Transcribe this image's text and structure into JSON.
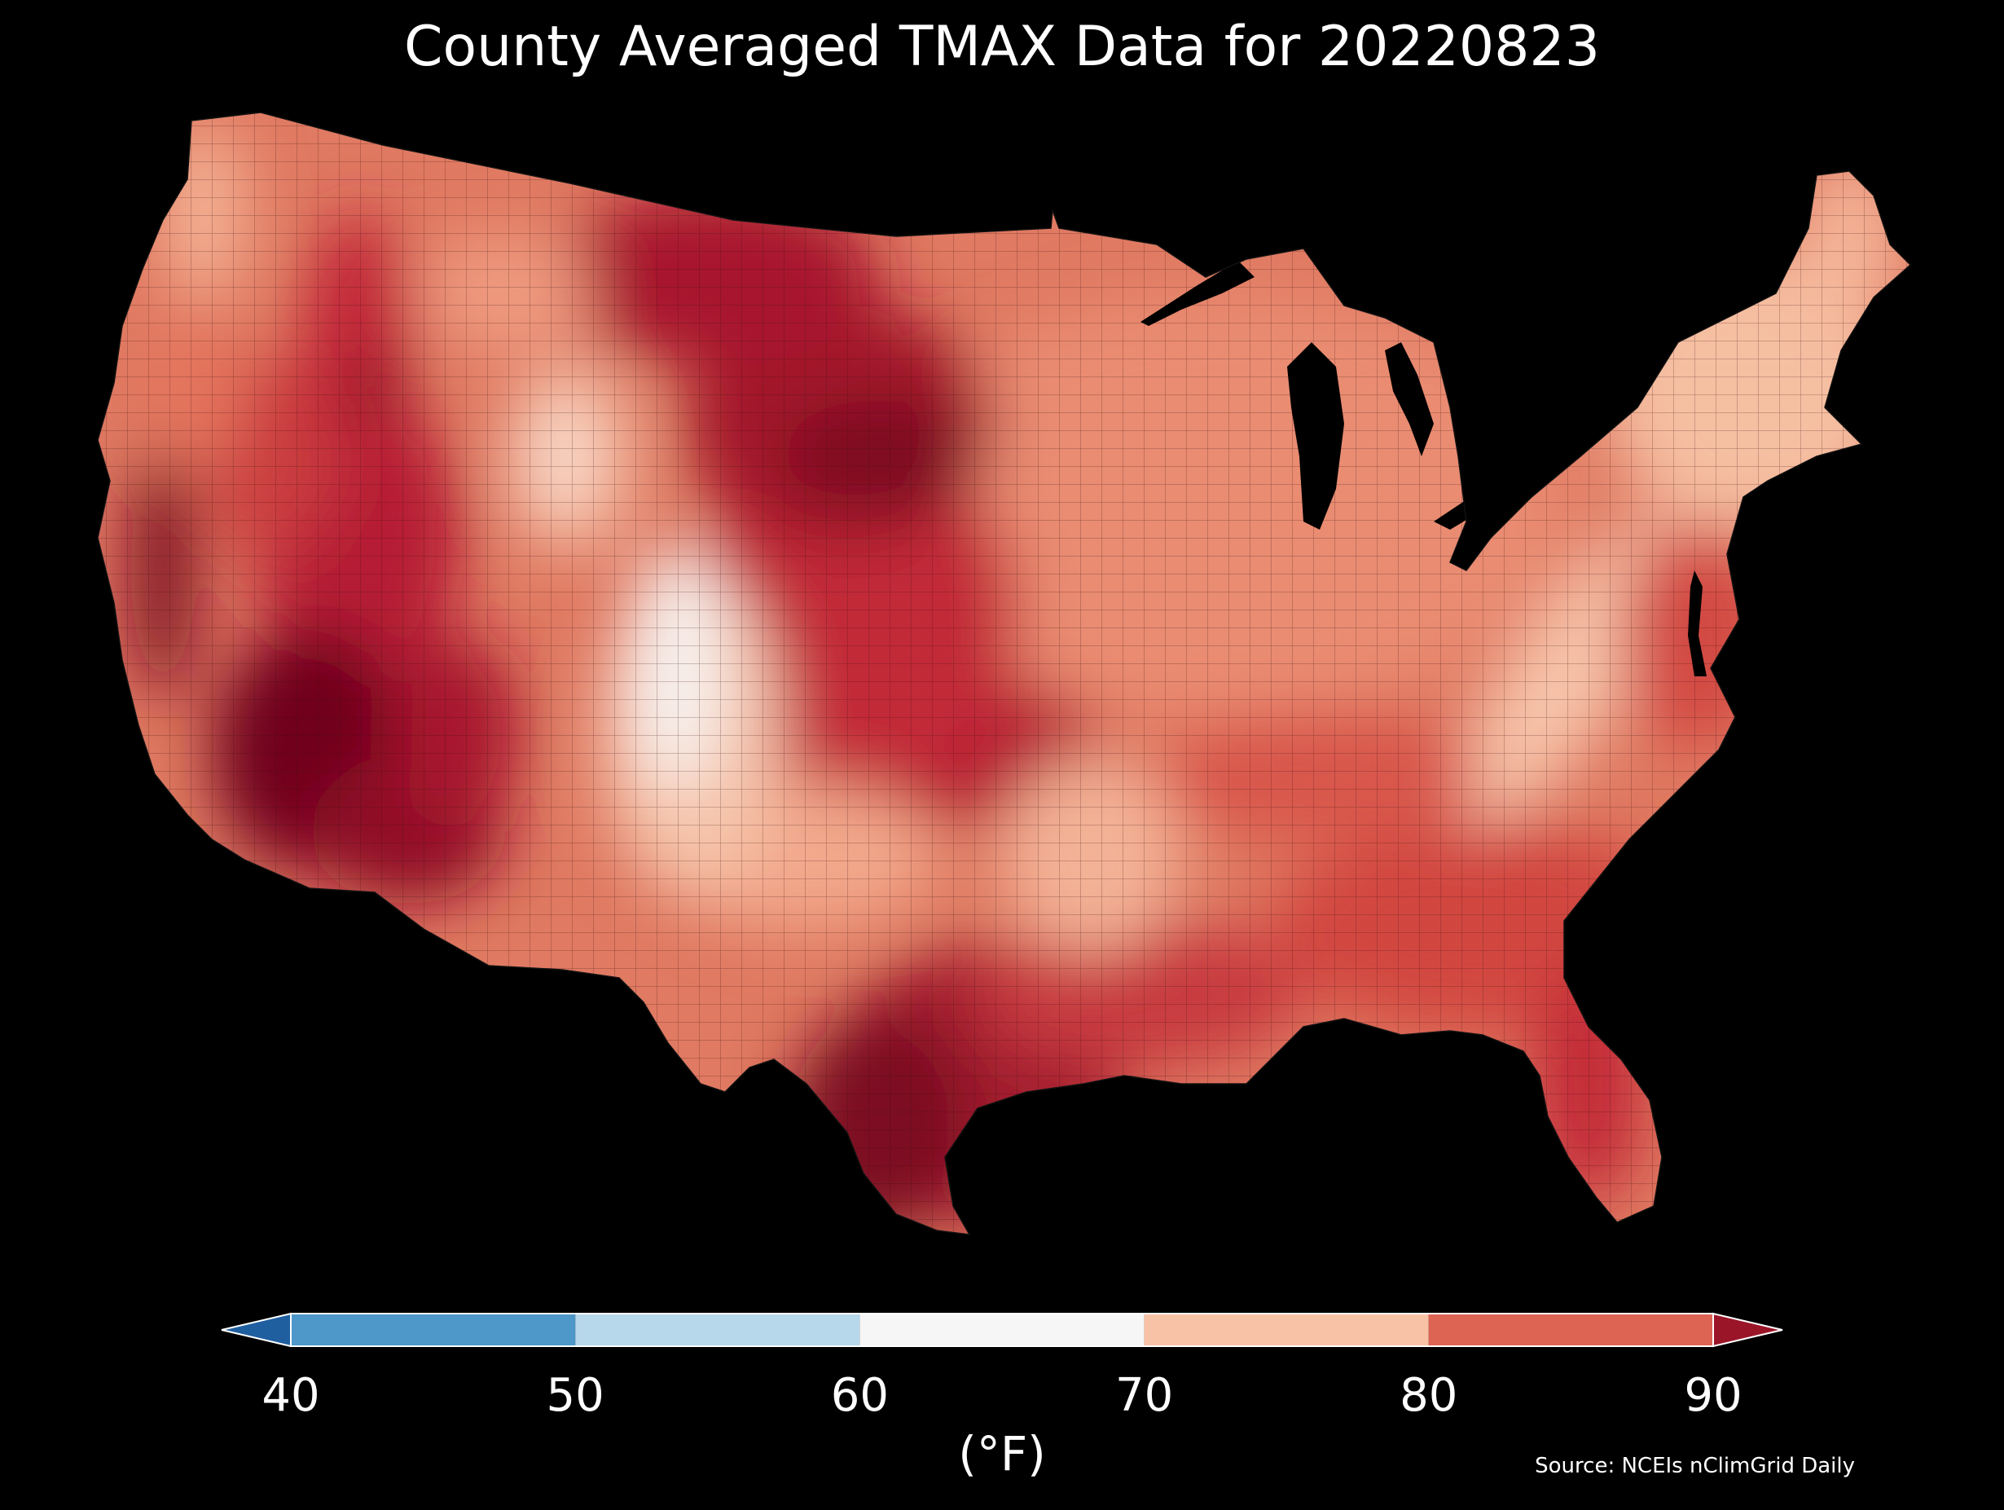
{
  "title": "County Averaged TMAX Data for 20220823",
  "colorbar": {
    "unit": "(°F)",
    "ticks": [
      "40",
      "50",
      "60",
      "70",
      "80",
      "90"
    ],
    "bins": [
      {
        "from": null,
        "to": 40,
        "color": "#1f5fa0"
      },
      {
        "from": 40,
        "to": 50,
        "color": "#4d97c9"
      },
      {
        "from": 50,
        "to": 60,
        "color": "#b7d7ea"
      },
      {
        "from": 60,
        "to": 70,
        "color": "#f6f6f6"
      },
      {
        "from": 70,
        "to": 80,
        "color": "#f8c2a6"
      },
      {
        "from": 80,
        "to": 90,
        "color": "#dd6353"
      },
      {
        "from": 90,
        "to": null,
        "color": "#9b1528"
      }
    ]
  },
  "source": "Source: NCEIs nClimGrid Daily",
  "colors": {
    "background": "#000000",
    "deep_red": "#6b0019",
    "dark_red": "#9b1528",
    "red": "#c2283a",
    "salmon": "#dd6353",
    "light_salmon": "#ef9a7e",
    "peach": "#f8c2a6",
    "near_white": "#f6f6f6",
    "pale_blue": "#dde9f3"
  }
}
